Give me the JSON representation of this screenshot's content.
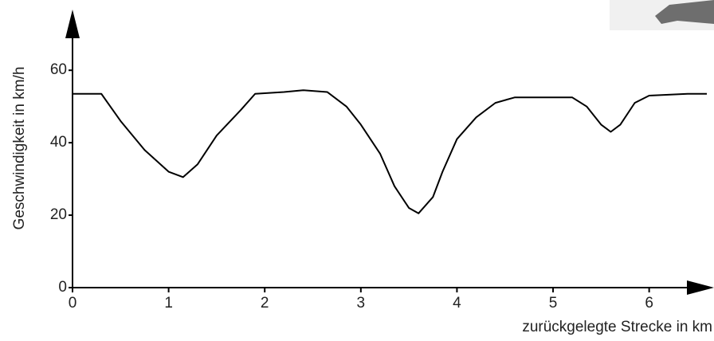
{
  "chart_data": {
    "type": "line",
    "y_label": "Geschwindigkeit in km/h",
    "x_label": "zurückgelegte Strecke in km",
    "x": [
      0,
      0.3,
      0.5,
      0.75,
      1.0,
      1.15,
      1.3,
      1.5,
      1.75,
      1.9,
      2.2,
      2.4,
      2.65,
      2.85,
      3.0,
      3.2,
      3.35,
      3.5,
      3.6,
      3.75,
      3.85,
      4.0,
      4.2,
      4.4,
      4.6,
      5.0,
      5.2,
      5.35,
      5.5,
      5.6,
      5.7,
      5.85,
      6.0,
      6.4,
      6.6
    ],
    "series": [
      {
        "color": "#000000",
        "values": [
          53.5,
          53.5,
          46,
          38,
          32,
          30.5,
          34,
          42,
          49,
          53.5,
          54,
          54.5,
          54,
          50,
          45,
          37,
          28,
          22,
          20.5,
          25,
          32,
          41,
          47,
          51,
          52.5,
          52.5,
          52.5,
          50,
          45,
          43,
          45,
          51,
          53,
          53.5,
          53.5
        ]
      }
    ],
    "xlim": [
      0,
      6.6
    ],
    "ylim": [
      0,
      75
    ],
    "xticks": [
      0,
      1,
      2,
      3,
      4,
      5,
      6
    ],
    "yticks": [
      0,
      20,
      40,
      60
    ],
    "grid": false
  }
}
